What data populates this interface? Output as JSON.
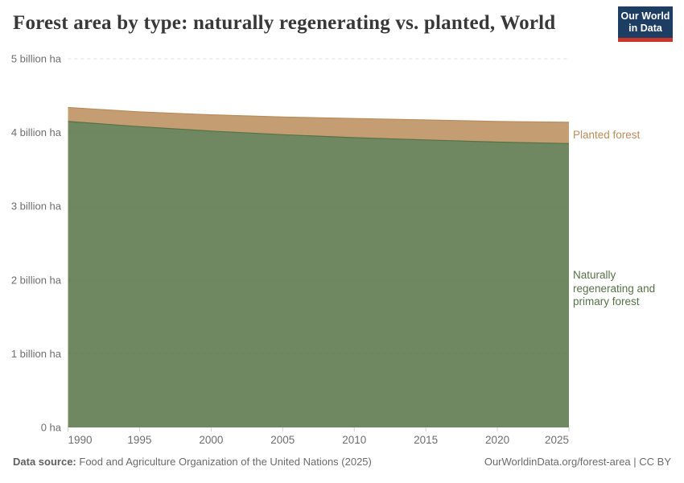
{
  "header": {
    "title": "Forest area by type: naturally regenerating vs. planted, World",
    "logo": {
      "line1": "Our World",
      "line2": "in Data",
      "bg_color": "#1d3d63",
      "accent_color": "#c7352c",
      "text_color": "#ffffff"
    }
  },
  "chart_data": {
    "type": "area",
    "stacked": true,
    "title": "Forest area by type: naturally regenerating vs. planted, World",
    "xlabel": "",
    "ylabel": "",
    "units": "billion ha",
    "x": [
      1990,
      1995,
      2000,
      2005,
      2010,
      2015,
      2020,
      2025
    ],
    "series": [
      {
        "name": "Naturally regenerating and primary forest",
        "color": "#567345",
        "values": [
          4.15,
          4.08,
          4.02,
          3.97,
          3.93,
          3.9,
          3.87,
          3.85
        ]
      },
      {
        "name": "Planted forest",
        "color": "#BB8C5B",
        "values": [
          0.19,
          0.2,
          0.22,
          0.24,
          0.26,
          0.27,
          0.28,
          0.29
        ]
      }
    ],
    "xlim": [
      1990,
      2025
    ],
    "ylim": [
      0,
      5
    ],
    "xticks": [
      1990,
      1995,
      2000,
      2005,
      2010,
      2015,
      2020,
      2025
    ],
    "yticks": [
      {
        "value": 0,
        "label": "0 ha"
      },
      {
        "value": 1,
        "label": "1 billion ha"
      },
      {
        "value": 2,
        "label": "2 billion ha"
      },
      {
        "value": 3,
        "label": "3 billion ha"
      },
      {
        "value": 4,
        "label": "4 billion ha"
      },
      {
        "value": 5,
        "label": "5 billion ha"
      }
    ],
    "grid": "horizontal-dashed",
    "grid_color": "#e2e2e2",
    "axis_text_color": "#6e6e6e",
    "tick_color": "#cfcfcf",
    "fill_opacity": 0.85,
    "legend_position": "inline-right-labels"
  },
  "footer": {
    "source_label": "Data source:",
    "source_text": "Food and Agriculture Organization of the United Nations (2025)",
    "credit": "OurWorldinData.org/forest-area | CC BY"
  }
}
